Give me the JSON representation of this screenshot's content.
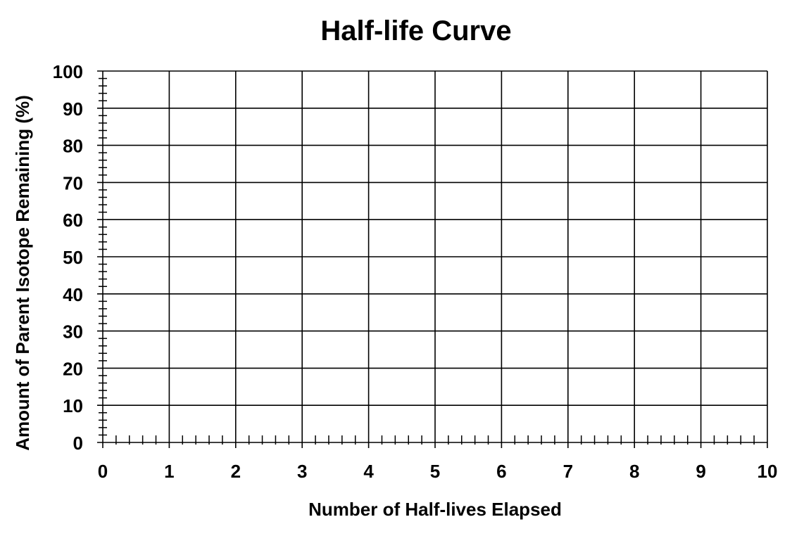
{
  "chart_data": {
    "type": "line",
    "title": "Half-life Curve",
    "xlabel": "Number of Half-lives Elapsed",
    "ylabel": "Amount of Parent Isotope Remaining (%)",
    "xlim": [
      0,
      10
    ],
    "ylim": [
      0,
      100
    ],
    "x_ticks": [
      "0",
      "1",
      "2",
      "3",
      "4",
      "5",
      "6",
      "7",
      "8",
      "9",
      "10"
    ],
    "y_ticks": [
      "0",
      "10",
      "20",
      "30",
      "40",
      "50",
      "60",
      "70",
      "80",
      "90",
      "100"
    ],
    "x_major_step": 1,
    "x_minor_step": 0.2,
    "y_major_step": 10,
    "y_minor_step": 2,
    "grid": true,
    "series": []
  },
  "colors": {
    "grid": "#000000",
    "axis": "#000000",
    "background": "#ffffff"
  }
}
